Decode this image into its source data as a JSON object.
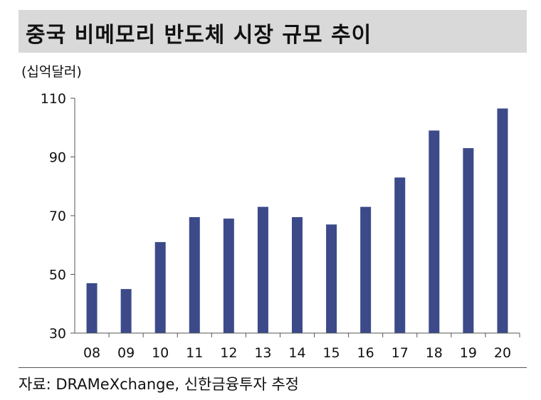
{
  "title": "중국 비메모리 반도체 시장 규모 추이",
  "unit": "(십억달러)",
  "source": "자료: DRAMeXchange, 신한금융투자 추정",
  "colors": {
    "bar": "#3c4a8a",
    "title_background": "#d9d9d9"
  },
  "chart_data": {
    "type": "bar",
    "title": "중국 비메모리 반도체 시장 규모 추이",
    "ylabel": "(십억달러)",
    "xlabel": "",
    "categories": [
      "08",
      "09",
      "10",
      "11",
      "12",
      "13",
      "14",
      "15",
      "16",
      "17",
      "18",
      "19",
      "20"
    ],
    "values": [
      47,
      45,
      61,
      69.5,
      69,
      73,
      69.5,
      67,
      73,
      83,
      99,
      93,
      106.5
    ],
    "ylim": [
      30,
      110
    ],
    "yticks": [
      "110",
      "90",
      "70",
      "50",
      "30"
    ],
    "grid": false,
    "legend": "none"
  }
}
